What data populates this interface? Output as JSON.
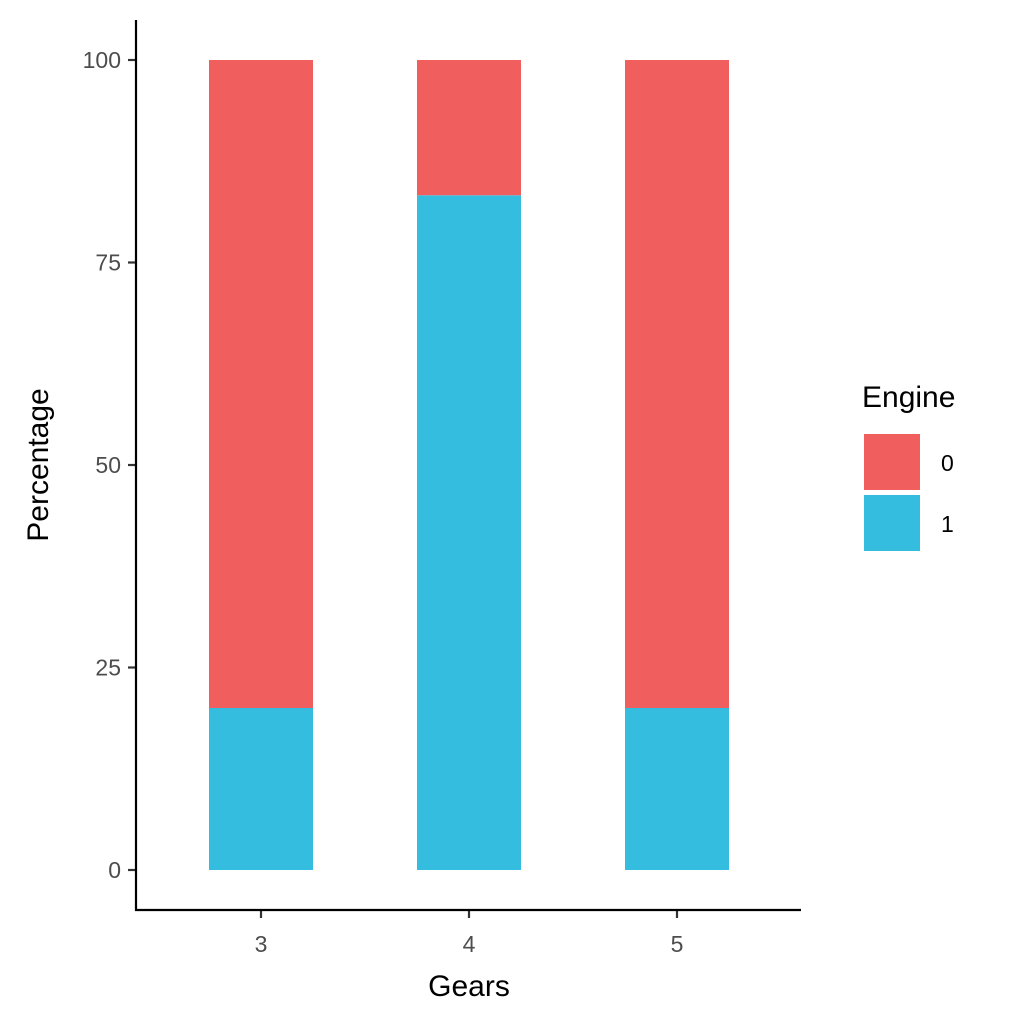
{
  "chart_data": {
    "type": "bar",
    "stacked": true,
    "xlabel": "Gears",
    "ylabel": "Percentage",
    "categories": [
      "3",
      "4",
      "5"
    ],
    "ylim": [
      0,
      100
    ],
    "yticks": [
      "0",
      "25",
      "50",
      "75",
      "100"
    ],
    "legend": {
      "title": "Engine",
      "placement": "right"
    },
    "series": [
      {
        "name": "0",
        "values": [
          80,
          16.7,
          80
        ],
        "color": "#F05E5E"
      },
      {
        "name": "1",
        "values": [
          20,
          83.3,
          20
        ],
        "color": "#35BDE0"
      }
    ],
    "grid": false
  }
}
